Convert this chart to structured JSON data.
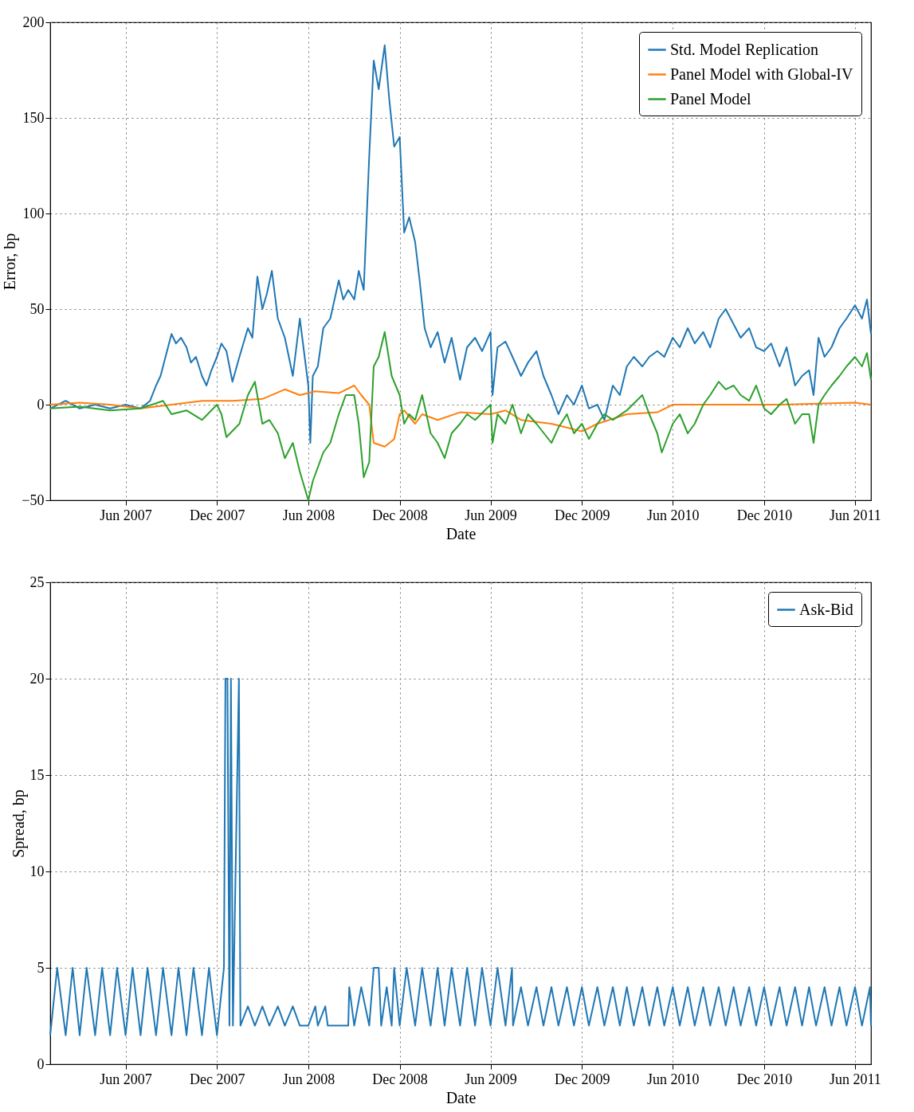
{
  "chart_data": [
    {
      "type": "line",
      "xlabel": "Date",
      "ylabel": "Error, bp",
      "xlim": [
        "2007-01-01",
        "2011-07-03"
      ],
      "ylim": [
        -50,
        200
      ],
      "xticks": [
        {
          "value": "2007-06-01",
          "label": "Jun 2007"
        },
        {
          "value": "2007-12-01",
          "label": "Dec 2007"
        },
        {
          "value": "2008-06-01",
          "label": "Jun 2008"
        },
        {
          "value": "2008-12-01",
          "label": "Dec 2008"
        },
        {
          "value": "2009-06-01",
          "label": "Jun 2009"
        },
        {
          "value": "2009-12-01",
          "label": "Dec 2009"
        },
        {
          "value": "2010-06-01",
          "label": "Jun 2010"
        },
        {
          "value": "2010-12-01",
          "label": "Dec 2010"
        },
        {
          "value": "2011-06-01",
          "label": "Jun 2011"
        }
      ],
      "yticks": [
        {
          "value": -50,
          "label": "−50"
        },
        0,
        50,
        100,
        150,
        200
      ],
      "grid": true,
      "legend": "top right",
      "line_style": "solid",
      "series": [
        {
          "name": "Std. Model Replication",
          "color": "#1f77b4",
          "x": [
            "2007-01-01",
            "2007-02-01",
            "2007-03-01",
            "2007-04-01",
            "2007-05-01",
            "2007-06-01",
            "2007-07-01",
            "2007-07-20",
            "2007-08-01",
            "2007-08-10",
            "2007-08-20",
            "2007-09-01",
            "2007-09-10",
            "2007-09-20",
            "2007-10-01",
            "2007-10-10",
            "2007-10-20",
            "2007-11-01",
            "2007-11-10",
            "2007-11-20",
            "2007-12-01",
            "2007-12-10",
            "2007-12-20",
            "2008-01-01",
            "2008-01-15",
            "2008-02-01",
            "2008-02-10",
            "2008-02-20",
            "2008-03-01",
            "2008-03-10",
            "2008-03-20",
            "2008-04-01",
            "2008-04-15",
            "2008-05-01",
            "2008-05-15",
            "2008-06-01",
            "2008-06-05",
            "2008-06-10",
            "2008-06-20",
            "2008-07-01",
            "2008-07-15",
            "2008-08-01",
            "2008-08-10",
            "2008-08-20",
            "2008-09-01",
            "2008-09-10",
            "2008-09-20",
            "2008-10-01",
            "2008-10-10",
            "2008-10-20",
            "2008-11-01",
            "2008-11-10",
            "2008-11-20",
            "2008-12-01",
            "2008-12-10",
            "2008-12-20",
            "2009-01-01",
            "2009-01-10",
            "2009-01-20",
            "2009-02-01",
            "2009-02-15",
            "2009-03-01",
            "2009-03-15",
            "2009-04-01",
            "2009-04-15",
            "2009-05-01",
            "2009-05-15",
            "2009-06-01",
            "2009-06-05",
            "2009-06-15",
            "2009-07-01",
            "2009-07-15",
            "2009-08-01",
            "2009-08-15",
            "2009-09-01",
            "2009-09-15",
            "2009-10-01",
            "2009-10-15",
            "2009-11-01",
            "2009-11-15",
            "2009-12-01",
            "2009-12-15",
            "2010-01-01",
            "2010-01-15",
            "2010-02-01",
            "2010-02-15",
            "2010-03-01",
            "2010-03-15",
            "2010-04-01",
            "2010-04-15",
            "2010-05-01",
            "2010-05-15",
            "2010-06-01",
            "2010-06-15",
            "2010-07-01",
            "2010-07-15",
            "2010-08-01",
            "2010-08-15",
            "2010-09-01",
            "2010-09-15",
            "2010-10-01",
            "2010-10-15",
            "2010-11-01",
            "2010-11-15",
            "2010-12-01",
            "2010-12-15",
            "2011-01-01",
            "2011-01-15",
            "2011-02-01",
            "2011-02-15",
            "2011-03-01",
            "2011-03-10",
            "2011-03-20",
            "2011-04-01",
            "2011-04-15",
            "2011-05-01",
            "2011-05-15",
            "2011-06-01",
            "2011-06-15",
            "2011-06-25",
            "2011-07-03"
          ],
          "values": [
            -2,
            2,
            -2,
            0,
            -2,
            0,
            -2,
            2,
            10,
            15,
            25,
            37,
            32,
            35,
            30,
            22,
            25,
            15,
            10,
            18,
            25,
            32,
            28,
            12,
            25,
            40,
            35,
            67,
            50,
            58,
            70,
            45,
            35,
            15,
            45,
            10,
            -20,
            15,
            20,
            40,
            45,
            65,
            55,
            60,
            55,
            70,
            60,
            130,
            180,
            165,
            188,
            160,
            135,
            140,
            90,
            98,
            85,
            65,
            40,
            30,
            38,
            22,
            35,
            13,
            30,
            35,
            28,
            38,
            5,
            30,
            33,
            25,
            15,
            22,
            28,
            15,
            5,
            -5,
            5,
            0,
            10,
            -2,
            0,
            -8,
            10,
            5,
            20,
            25,
            20,
            25,
            28,
            25,
            35,
            30,
            40,
            32,
            38,
            30,
            45,
            50,
            42,
            35,
            40,
            30,
            28,
            32,
            20,
            30,
            10,
            15,
            18,
            5,
            35,
            25,
            30,
            40,
            45,
            52,
            45,
            55,
            37
          ]
        },
        {
          "name": "Panel Model with Global-IV",
          "color": "#ff7f0e",
          "x": [
            "2007-01-01",
            "2007-03-01",
            "2007-05-01",
            "2007-07-01",
            "2007-09-01",
            "2007-11-01",
            "2008-01-01",
            "2008-03-01",
            "2008-04-15",
            "2008-05-15",
            "2008-06-15",
            "2008-08-01",
            "2008-09-01",
            "2008-09-15",
            "2008-10-01",
            "2008-10-10",
            "2008-11-01",
            "2008-11-20",
            "2008-12-01",
            "2008-12-10",
            "2009-01-01",
            "2009-01-15",
            "2009-02-15",
            "2009-04-01",
            "2009-06-01",
            "2009-07-01",
            "2009-08-01",
            "2009-10-01",
            "2009-11-01",
            "2009-12-01",
            "2010-01-01",
            "2010-03-01",
            "2010-05-01",
            "2010-06-01",
            "2010-08-01",
            "2010-10-01",
            "2011-01-01",
            "2011-06-01",
            "2011-07-03"
          ],
          "values": [
            0,
            1,
            0,
            -2,
            0,
            2,
            2,
            3,
            8,
            5,
            7,
            6,
            10,
            5,
            0,
            -20,
            -22,
            -18,
            -5,
            -3,
            -10,
            -5,
            -8,
            -4,
            -5,
            -3,
            -8,
            -10,
            -12,
            -14,
            -10,
            -5,
            -4,
            0,
            0,
            0,
            0,
            1,
            0
          ]
        },
        {
          "name": "Panel Model",
          "color": "#2ca02c",
          "x": [
            "2007-01-01",
            "2007-03-01",
            "2007-05-01",
            "2007-07-01",
            "2007-08-15",
            "2007-09-01",
            "2007-10-01",
            "2007-11-01",
            "2007-12-01",
            "2007-12-10",
            "2007-12-20",
            "2008-01-15",
            "2008-02-01",
            "2008-02-15",
            "2008-03-01",
            "2008-03-15",
            "2008-04-01",
            "2008-04-15",
            "2008-05-01",
            "2008-05-15",
            "2008-06-01",
            "2008-06-10",
            "2008-07-01",
            "2008-07-15",
            "2008-08-01",
            "2008-08-15",
            "2008-09-01",
            "2008-09-10",
            "2008-09-20",
            "2008-10-01",
            "2008-10-10",
            "2008-10-20",
            "2008-11-01",
            "2008-11-15",
            "2008-12-01",
            "2008-12-10",
            "2008-12-20",
            "2009-01-01",
            "2009-01-15",
            "2009-02-01",
            "2009-02-15",
            "2009-03-01",
            "2009-03-15",
            "2009-04-01",
            "2009-04-15",
            "2009-05-01",
            "2009-06-01",
            "2009-06-05",
            "2009-06-15",
            "2009-07-01",
            "2009-07-15",
            "2009-08-01",
            "2009-08-15",
            "2009-09-01",
            "2009-10-01",
            "2009-10-15",
            "2009-11-01",
            "2009-11-15",
            "2009-12-01",
            "2009-12-15",
            "2010-01-01",
            "2010-01-15",
            "2010-02-01",
            "2010-03-01",
            "2010-04-01",
            "2010-04-15",
            "2010-05-01",
            "2010-05-10",
            "2010-06-01",
            "2010-06-15",
            "2010-07-01",
            "2010-07-15",
            "2010-08-01",
            "2010-08-15",
            "2010-09-01",
            "2010-09-15",
            "2010-10-01",
            "2010-10-15",
            "2010-11-01",
            "2010-11-15",
            "2010-12-01",
            "2010-12-15",
            "2011-01-01",
            "2011-01-15",
            "2011-02-01",
            "2011-02-15",
            "2011-03-01",
            "2011-03-10",
            "2011-03-20",
            "2011-04-01",
            "2011-04-15",
            "2011-05-01",
            "2011-05-15",
            "2011-06-01",
            "2011-06-15",
            "2011-06-25",
            "2011-07-03"
          ],
          "values": [
            -2,
            -1,
            -3,
            -2,
            2,
            -5,
            -3,
            -8,
            0,
            -5,
            -17,
            -10,
            5,
            12,
            -10,
            -8,
            -15,
            -28,
            -20,
            -35,
            -50,
            -40,
            -25,
            -20,
            -5,
            5,
            5,
            -10,
            -38,
            -30,
            20,
            25,
            38,
            15,
            5,
            -10,
            -5,
            -8,
            5,
            -15,
            -20,
            -28,
            -15,
            -10,
            -5,
            -8,
            0,
            -20,
            -5,
            -10,
            0,
            -15,
            -5,
            -10,
            -20,
            -12,
            -5,
            -15,
            -10,
            -18,
            -10,
            -5,
            -8,
            -3,
            5,
            -5,
            -15,
            -25,
            -10,
            -5,
            -15,
            -10,
            0,
            5,
            12,
            8,
            10,
            5,
            2,
            10,
            -2,
            -5,
            0,
            3,
            -10,
            -5,
            -5,
            -20,
            0,
            5,
            10,
            15,
            20,
            25,
            20,
            27,
            13
          ]
        }
      ]
    },
    {
      "type": "line",
      "xlabel": "Date",
      "ylabel": "Spread, bp",
      "xlim": [
        "2007-01-01",
        "2011-07-03"
      ],
      "ylim": [
        0,
        25
      ],
      "xticks": [
        {
          "value": "2007-06-01",
          "label": "Jun 2007"
        },
        {
          "value": "2007-12-01",
          "label": "Dec 2007"
        },
        {
          "value": "2008-06-01",
          "label": "Jun 2008"
        },
        {
          "value": "2008-12-01",
          "label": "Dec 2008"
        },
        {
          "value": "2009-06-01",
          "label": "Jun 2009"
        },
        {
          "value": "2009-12-01",
          "label": "Dec 2009"
        },
        {
          "value": "2010-06-01",
          "label": "Jun 2010"
        },
        {
          "value": "2010-12-01",
          "label": "Dec 2010"
        },
        {
          "value": "2011-06-01",
          "label": "Jun 2011"
        }
      ],
      "yticks": [
        0,
        5,
        10,
        15,
        20,
        25
      ],
      "grid": true,
      "legend": "top right",
      "line_style": "solid",
      "series": [
        {
          "name": "Ask-Bid",
          "color": "#1f77b4",
          "x": [
            "2007-01-01",
            "2007-01-15",
            "2007-02-01",
            "2007-02-15",
            "2007-03-01",
            "2007-03-15",
            "2007-04-01",
            "2007-04-15",
            "2007-05-01",
            "2007-05-15",
            "2007-06-01",
            "2007-06-15",
            "2007-07-01",
            "2007-07-15",
            "2007-08-01",
            "2007-08-15",
            "2007-09-01",
            "2007-09-15",
            "2007-10-01",
            "2007-10-15",
            "2007-11-01",
            "2007-11-15",
            "2007-12-01",
            "2007-12-15",
            "2007-12-18",
            "2007-12-22",
            "2007-12-26",
            "2007-12-29",
            "2008-01-02",
            "2008-01-14",
            "2008-01-17",
            "2008-02-01",
            "2008-02-15",
            "2008-03-01",
            "2008-03-15",
            "2008-04-01",
            "2008-04-15",
            "2008-05-01",
            "2008-05-15",
            "2008-06-01",
            "2008-06-15",
            "2008-06-20",
            "2008-07-05",
            "2008-07-10",
            "2008-08-20",
            "2008-08-22",
            "2008-09-01",
            "2008-09-15",
            "2008-10-01",
            "2008-10-10",
            "2008-10-20",
            "2008-10-25",
            "2008-11-05",
            "2008-11-15",
            "2008-11-20",
            "2008-12-01",
            "2008-12-15",
            "2009-01-01",
            "2009-01-15",
            "2009-02-01",
            "2009-02-15",
            "2009-03-01",
            "2009-03-15",
            "2009-04-01",
            "2009-04-15",
            "2009-05-01",
            "2009-05-15",
            "2009-06-01",
            "2009-06-15",
            "2009-07-01",
            "2009-07-14",
            "2009-07-16",
            "2009-08-01",
            "2009-08-15",
            "2009-09-01",
            "2009-09-15",
            "2009-10-01",
            "2009-10-15",
            "2009-11-01",
            "2009-11-15",
            "2009-12-01",
            "2009-12-15",
            "2010-01-01",
            "2010-01-15",
            "2010-02-01",
            "2010-02-15",
            "2010-03-01",
            "2010-03-15",
            "2010-04-01",
            "2010-04-15",
            "2010-05-01",
            "2010-05-15",
            "2010-06-01",
            "2010-06-15",
            "2010-07-01",
            "2010-07-15",
            "2010-08-01",
            "2010-08-15",
            "2010-09-01",
            "2010-09-15",
            "2010-10-01",
            "2010-10-15",
            "2010-11-01",
            "2010-11-15",
            "2010-12-01",
            "2010-12-15",
            "2011-01-01",
            "2011-01-15",
            "2011-02-01",
            "2011-02-15",
            "2011-03-01",
            "2011-03-15",
            "2011-04-01",
            "2011-04-15",
            "2011-05-01",
            "2011-05-15",
            "2011-06-01",
            "2011-06-15",
            "2011-07-01",
            "2011-07-03"
          ],
          "values": [
            1.5,
            5,
            1.5,
            5,
            1.5,
            5,
            1.5,
            5,
            1.5,
            5,
            1.5,
            5,
            1.5,
            5,
            1.5,
            5,
            1.5,
            5,
            1.5,
            5,
            1.5,
            5,
            1.5,
            5,
            20,
            20,
            2,
            20,
            2,
            20,
            2,
            3,
            2,
            3,
            2,
            3,
            2,
            3,
            2,
            2,
            3,
            2,
            3,
            2,
            2,
            4,
            2,
            4,
            2,
            5,
            5,
            2,
            4,
            2,
            5,
            2,
            5,
            2,
            5,
            2,
            5,
            2,
            5,
            2,
            5,
            2,
            5,
            2,
            5,
            2,
            5,
            2,
            4,
            2,
            4,
            2,
            4,
            2,
            4,
            2,
            4,
            2,
            4,
            2,
            4,
            2,
            4,
            2,
            4,
            2,
            4,
            2,
            4,
            2,
            4,
            2,
            4,
            2,
            4,
            2,
            4,
            2,
            4,
            2,
            4,
            2,
            4,
            2,
            4,
            2,
            4,
            2,
            4,
            2,
            4,
            2,
            4,
            2,
            4,
            2
          ]
        }
      ]
    }
  ]
}
